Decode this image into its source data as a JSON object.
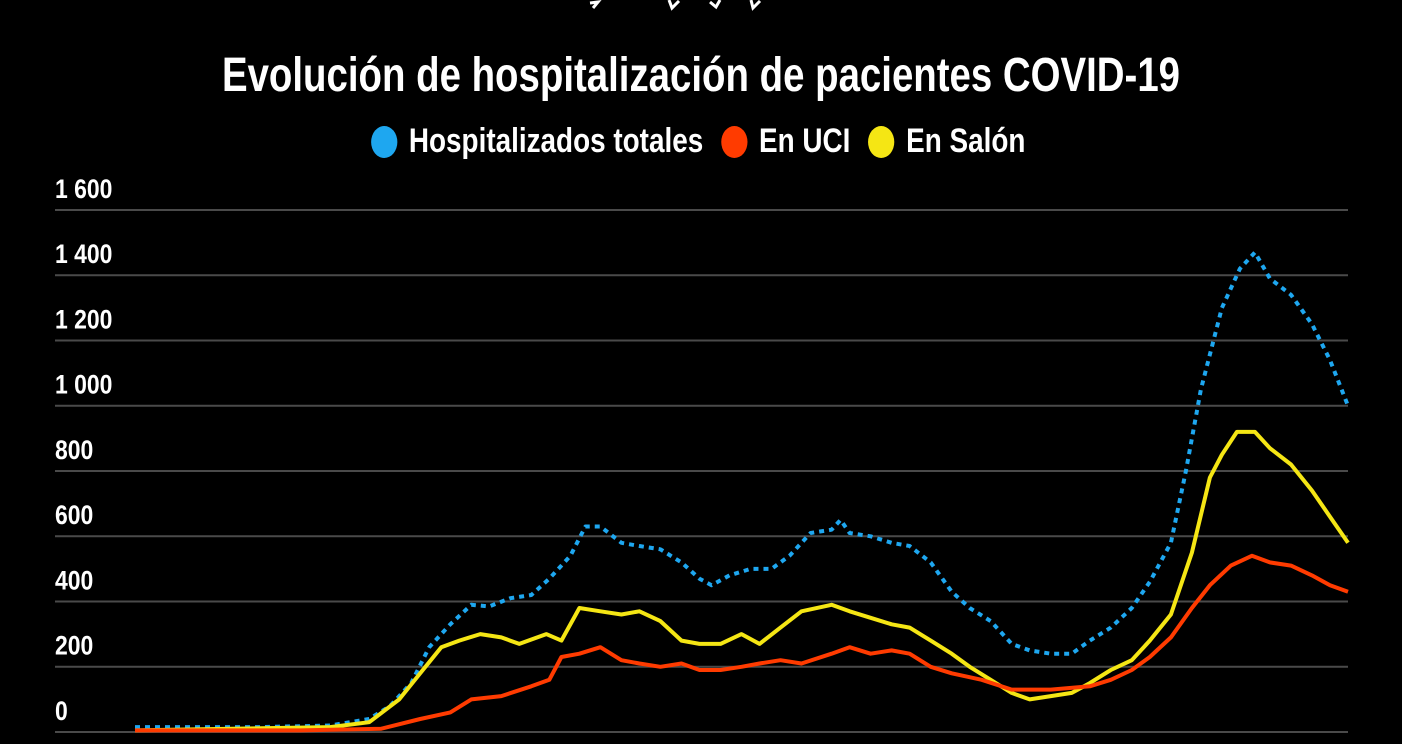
{
  "chart_data": {
    "type": "line",
    "title": "Evolución de hospitalización de pacientes COVID-19",
    "xlabel": "",
    "ylabel": "",
    "ylim": [
      0,
      1600
    ],
    "yticks": [
      0,
      200,
      400,
      600,
      800,
      1000,
      1200,
      1400,
      1600
    ],
    "ytick_labels": [
      "0",
      "200",
      "400",
      "600",
      "800",
      "1 000",
      "1 200",
      "1 400",
      "1 600"
    ],
    "xlim": [
      0,
      404
    ],
    "x_unit": "day index (approximate)",
    "grid": true,
    "legend_position": "top-center",
    "series": [
      {
        "name": "Hospitalizados totales",
        "color": "#1ea7f0",
        "style": "dotted",
        "points": [
          [
            0,
            15
          ],
          [
            22,
            15
          ],
          [
            42,
            15
          ],
          [
            65,
            20
          ],
          [
            78,
            40
          ],
          [
            85,
            80
          ],
          [
            92,
            150
          ],
          [
            98,
            260
          ],
          [
            105,
            330
          ],
          [
            112,
            390
          ],
          [
            118,
            385
          ],
          [
            125,
            410
          ],
          [
            132,
            420
          ],
          [
            138,
            470
          ],
          [
            145,
            540
          ],
          [
            150,
            630
          ],
          [
            155,
            630
          ],
          [
            162,
            580
          ],
          [
            168,
            570
          ],
          [
            175,
            560
          ],
          [
            182,
            520
          ],
          [
            188,
            470
          ],
          [
            192,
            450
          ],
          [
            198,
            480
          ],
          [
            205,
            500
          ],
          [
            212,
            500
          ],
          [
            218,
            540
          ],
          [
            225,
            610
          ],
          [
            232,
            620
          ],
          [
            235,
            650
          ],
          [
            238,
            610
          ],
          [
            245,
            600
          ],
          [
            252,
            580
          ],
          [
            258,
            570
          ],
          [
            265,
            520
          ],
          [
            272,
            430
          ],
          [
            278,
            380
          ],
          [
            285,
            340
          ],
          [
            292,
            270
          ],
          [
            298,
            250
          ],
          [
            305,
            240
          ],
          [
            312,
            240
          ],
          [
            318,
            280
          ],
          [
            325,
            320
          ],
          [
            332,
            380
          ],
          [
            338,
            460
          ],
          [
            345,
            580
          ],
          [
            350,
            800
          ],
          [
            355,
            1050
          ],
          [
            362,
            1300
          ],
          [
            368,
            1420
          ],
          [
            373,
            1470
          ],
          [
            378,
            1390
          ],
          [
            385,
            1340
          ],
          [
            392,
            1250
          ],
          [
            398,
            1140
          ],
          [
            404,
            1000
          ]
        ]
      },
      {
        "name": "En UCI",
        "color": "#ff3b00",
        "style": "solid",
        "points": [
          [
            0,
            5
          ],
          [
            55,
            5
          ],
          [
            82,
            10
          ],
          [
            95,
            40
          ],
          [
            105,
            60
          ],
          [
            112,
            100
          ],
          [
            122,
            110
          ],
          [
            132,
            140
          ],
          [
            138,
            160
          ],
          [
            142,
            230
          ],
          [
            148,
            240
          ],
          [
            155,
            260
          ],
          [
            162,
            220
          ],
          [
            168,
            210
          ],
          [
            175,
            200
          ],
          [
            182,
            210
          ],
          [
            188,
            190
          ],
          [
            195,
            190
          ],
          [
            202,
            200
          ],
          [
            208,
            210
          ],
          [
            215,
            220
          ],
          [
            222,
            210
          ],
          [
            232,
            240
          ],
          [
            238,
            260
          ],
          [
            245,
            240
          ],
          [
            252,
            250
          ],
          [
            258,
            240
          ],
          [
            265,
            200
          ],
          [
            272,
            180
          ],
          [
            282,
            160
          ],
          [
            292,
            130
          ],
          [
            305,
            130
          ],
          [
            318,
            140
          ],
          [
            325,
            160
          ],
          [
            332,
            190
          ],
          [
            338,
            230
          ],
          [
            345,
            290
          ],
          [
            352,
            380
          ],
          [
            358,
            450
          ],
          [
            365,
            510
          ],
          [
            372,
            540
          ],
          [
            378,
            520
          ],
          [
            385,
            510
          ],
          [
            392,
            480
          ],
          [
            398,
            450
          ],
          [
            404,
            430
          ]
        ]
      },
      {
        "name": "En Salón",
        "color": "#f5e614",
        "style": "solid",
        "points": [
          [
            0,
            5
          ],
          [
            65,
            15
          ],
          [
            78,
            30
          ],
          [
            88,
            100
          ],
          [
            95,
            180
          ],
          [
            102,
            260
          ],
          [
            108,
            280
          ],
          [
            115,
            300
          ],
          [
            122,
            290
          ],
          [
            128,
            270
          ],
          [
            137,
            300
          ],
          [
            142,
            280
          ],
          [
            148,
            380
          ],
          [
            155,
            370
          ],
          [
            162,
            360
          ],
          [
            168,
            370
          ],
          [
            175,
            340
          ],
          [
            182,
            280
          ],
          [
            188,
            270
          ],
          [
            195,
            270
          ],
          [
            202,
            300
          ],
          [
            208,
            270
          ],
          [
            215,
            320
          ],
          [
            222,
            370
          ],
          [
            232,
            390
          ],
          [
            238,
            370
          ],
          [
            245,
            350
          ],
          [
            252,
            330
          ],
          [
            258,
            320
          ],
          [
            265,
            280
          ],
          [
            272,
            240
          ],
          [
            278,
            200
          ],
          [
            285,
            160
          ],
          [
            292,
            120
          ],
          [
            298,
            100
          ],
          [
            305,
            110
          ],
          [
            312,
            120
          ],
          [
            318,
            150
          ],
          [
            325,
            190
          ],
          [
            332,
            220
          ],
          [
            338,
            280
          ],
          [
            345,
            360
          ],
          [
            352,
            550
          ],
          [
            358,
            780
          ],
          [
            362,
            850
          ],
          [
            367,
            920
          ],
          [
            373,
            920
          ],
          [
            378,
            870
          ],
          [
            385,
            820
          ],
          [
            392,
            740
          ],
          [
            398,
            660
          ],
          [
            404,
            580
          ]
        ]
      }
    ]
  }
}
